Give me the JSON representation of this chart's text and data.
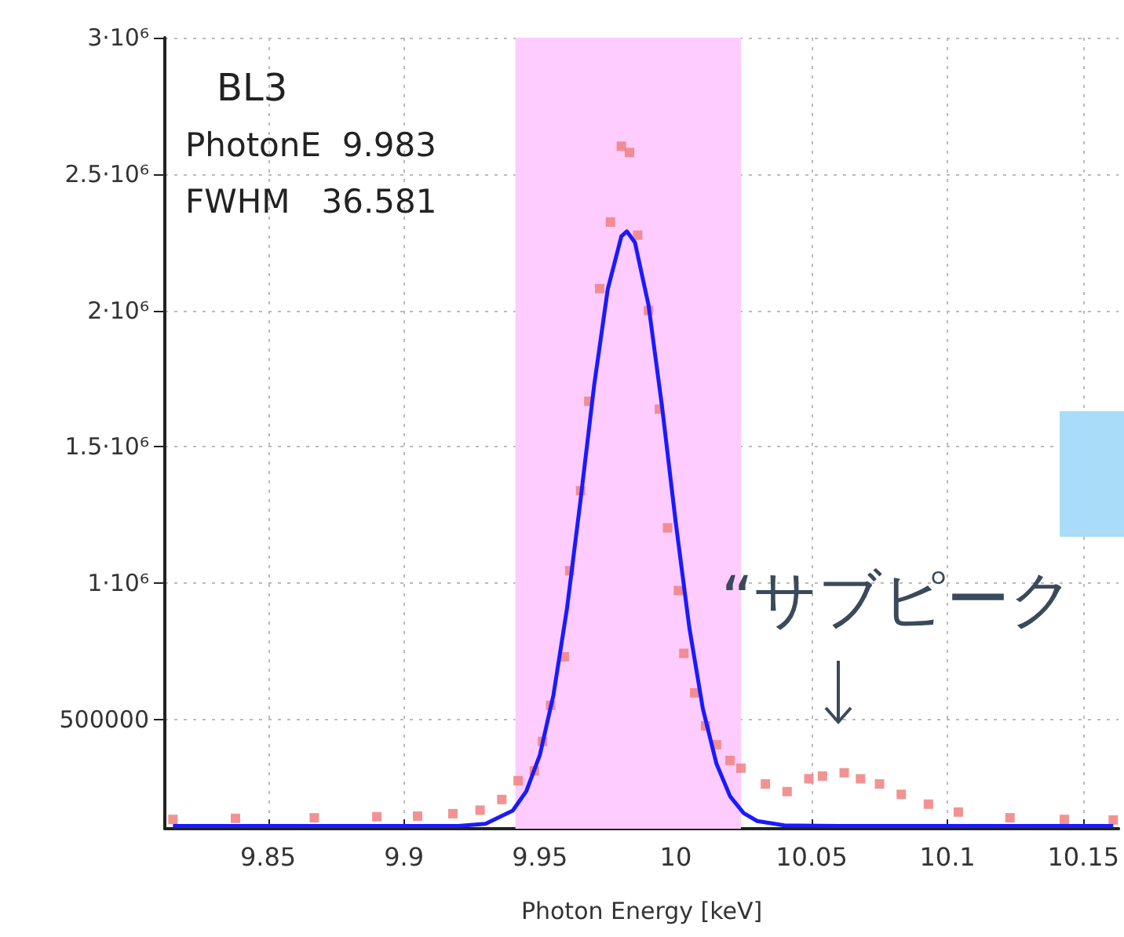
{
  "chart_data": {
    "type": "scatter",
    "xlabel": "Photon Energy [keV]",
    "xlim": [
      9.812,
      10.163
    ],
    "xticks": [
      9.85,
      9.9,
      9.95,
      10,
      10.05,
      10.1,
      10.15
    ],
    "ylim": [
      100000,
      3000000
    ],
    "yticks": [
      {
        "value": 500000,
        "label": "500000"
      },
      {
        "value": 1000000,
        "label": "1·10⁶"
      },
      {
        "value": 1500000,
        "label": "1.5·10⁶"
      },
      {
        "value": 2000000,
        "label": "2·10⁶"
      },
      {
        "value": 2500000,
        "label": "2.5·10⁶"
      },
      {
        "value": 3000000,
        "label": "3·10⁶"
      }
    ],
    "grid": true,
    "marker": "square",
    "bands": [
      {
        "axis": "x",
        "from": 9.941,
        "to": 10.024,
        "color": "#ffccff"
      }
    ],
    "annotations": [
      "BL3",
      "PhotonE  9.983",
      "FWHM   36.581",
      {
        "text": "“サブピーク",
        "x": 10.06,
        "y": 305000
      }
    ],
    "series": [
      {
        "color": "#f08080",
        "x": [
          9.815,
          9.838,
          9.867,
          9.89,
          9.905,
          9.918,
          9.928,
          9.936,
          9.942,
          9.948,
          9.951,
          9.954,
          9.959,
          9.961,
          9.965,
          9.968,
          9.972,
          9.976,
          9.98,
          9.983,
          9.986,
          9.99,
          9.994,
          9.997,
          10.001,
          10.003,
          10.007,
          10.011,
          10.015,
          10.02,
          10.024,
          10.033,
          10.041,
          10.049,
          10.054,
          10.062,
          10.068,
          10.075,
          10.083,
          10.093,
          10.104,
          10.123,
          10.143,
          10.161
        ],
        "values": [
          134000,
          138000,
          140000,
          144000,
          146000,
          155000,
          168000,
          207000,
          276000,
          312000,
          420000,
          552000,
          730000,
          1046000,
          1339000,
          1667000,
          2080000,
          2324000,
          2602000,
          2579000,
          2276000,
          2000000,
          1638000,
          1203000,
          973000,
          743000,
          598000,
          477000,
          408000,
          350000,
          322000,
          264000,
          236000,
          283000,
          293000,
          305000,
          283000,
          264000,
          226000,
          190000,
          161000,
          140000,
          134000,
          132000
        ]
      },
      {
        "type": "line",
        "color": "#1a1aff",
        "marker": "none",
        "x": [
          9.815,
          9.86,
          9.9,
          9.92,
          9.93,
          9.94,
          9.945,
          9.95,
          9.955,
          9.96,
          9.965,
          9.97,
          9.975,
          9.98,
          9.982,
          9.985,
          9.99,
          9.995,
          10.0,
          10.005,
          10.01,
          10.015,
          10.02,
          10.025,
          10.03,
          10.04,
          10.06,
          10.1,
          10.161
        ],
        "values": [
          110000,
          110000,
          110000,
          110000,
          118000,
          166000,
          237000,
          370000,
          590000,
          908000,
          1307000,
          1727000,
          2078000,
          2272000,
          2290000,
          2249000,
          2019000,
          1645000,
          1223000,
          838000,
          539000,
          338000,
          219000,
          157000,
          128000,
          112000,
          110000,
          110000,
          110000
        ]
      }
    ]
  }
}
